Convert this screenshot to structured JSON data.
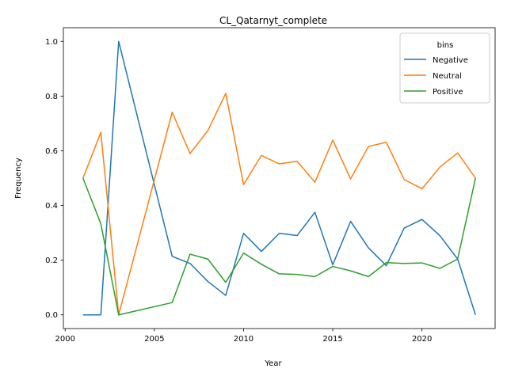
{
  "chart_data": {
    "type": "line",
    "title": "CL_Qatarnyt_complete",
    "xlabel": "Year",
    "ylabel": "Frequency",
    "xlim": [
      1999.9,
      2024.1
    ],
    "ylim": [
      -0.05,
      1.05
    ],
    "x_ticks": [
      2000,
      2005,
      2010,
      2015,
      2020
    ],
    "y_ticks": [
      0.0,
      0.2,
      0.4,
      0.6,
      0.8,
      1.0
    ],
    "x_tick_labels": [
      "2000",
      "2005",
      "2010",
      "2015",
      "2020"
    ],
    "y_tick_labels": [
      "0.0",
      "0.2",
      "0.4",
      "0.6",
      "0.8",
      "1.0"
    ],
    "grid": false,
    "legend": {
      "title": "bins",
      "placement": "top-right"
    },
    "x": [
      2001,
      2002,
      2003,
      2006,
      2007,
      2008,
      2009,
      2010,
      2011,
      2012,
      2013,
      2014,
      2015,
      2016,
      2017,
      2018,
      2019,
      2020,
      2021,
      2022,
      2023
    ],
    "series": [
      {
        "name": "Negative",
        "color": "#1f77b4",
        "values": [
          0.0,
          0.0,
          1.0,
          0.214,
          0.188,
          0.122,
          0.071,
          0.298,
          0.232,
          0.298,
          0.29,
          0.375,
          0.183,
          0.342,
          0.245,
          0.18,
          0.317,
          0.349,
          0.29,
          0.204,
          0.0
        ]
      },
      {
        "name": "Neutral",
        "color": "#ff7f0e",
        "values": [
          0.5,
          0.667,
          0.0,
          0.741,
          0.59,
          0.674,
          0.81,
          0.476,
          0.583,
          0.552,
          0.562,
          0.485,
          0.639,
          0.497,
          0.616,
          0.631,
          0.495,
          0.461,
          0.54,
          0.592,
          0.5
        ]
      },
      {
        "name": "Positive",
        "color": "#2ca02c",
        "values": [
          0.5,
          0.333,
          0.0,
          0.045,
          0.222,
          0.204,
          0.119,
          0.226,
          0.185,
          0.15,
          0.148,
          0.14,
          0.177,
          0.161,
          0.14,
          0.191,
          0.188,
          0.19,
          0.17,
          0.204,
          0.5
        ]
      }
    ]
  }
}
